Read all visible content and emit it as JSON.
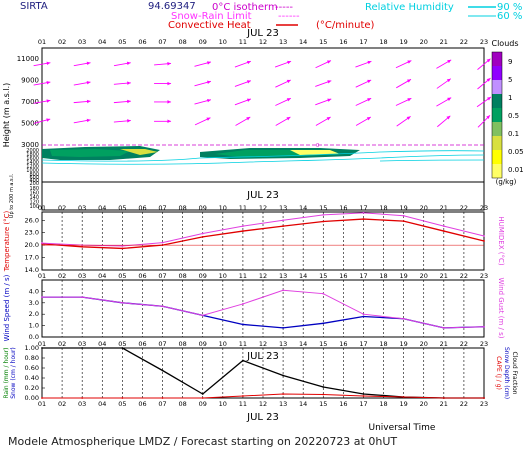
{
  "header": {
    "station": "SIRTA",
    "coords": "94.69347",
    "legend_left": [
      {
        "label": "0°C isotherm",
        "style": "-----"
      },
      {
        "label": "Snow-Rain Limit",
        "style": "------"
      },
      {
        "label": "Convective Heat",
        "unit": "(°C/minute)"
      }
    ],
    "legend_right": [
      {
        "label": "Relative Humidity",
        "levels": [
          "90 %",
          "60 %"
        ]
      }
    ],
    "colors": {
      "isotherm": "#cc00cc",
      "convective": "#e00000",
      "humidity": "#00d0e0",
      "wind_arrow": "#ff00ff"
    }
  },
  "date_label": "JUL 23",
  "hours": [
    "01",
    "02",
    "03",
    "04",
    "05",
    "06",
    "07",
    "08",
    "09",
    "10",
    "11",
    "12",
    "13",
    "14",
    "15",
    "16",
    "17",
    "18",
    "19",
    "20",
    "21",
    "22",
    "23"
  ],
  "footer": {
    "time_axis_title": "Universal Time",
    "caption": "Modele Atmospherique LMDZ / Forecast starting on 20220723 at 0hUT"
  },
  "chart_data": [
    {
      "type": "heatmap",
      "name": "clouds",
      "ylabel": "Height (m a.s.l.)",
      "yticks_upper": [
        11000,
        9000,
        7000,
        5000,
        3000
      ],
      "yticks_lower": [
        2000,
        1800,
        1600,
        1400,
        1200,
        1000,
        800,
        600,
        400,
        200,
        180,
        160,
        140,
        120,
        100
      ],
      "ylabel_lower": "Up to 200 m a.s.l.",
      "colorbar": {
        "title": "Clouds",
        "unit": "(g/kg)",
        "levels": [
          "9",
          "5",
          "1",
          "0.5",
          "0.1",
          "0.05",
          "0.01"
        ],
        "colors": [
          "#ffff66",
          "#ffff00",
          "#d8e040",
          "#80c060",
          "#00a060",
          "#008060",
          "#c090ff",
          "#9000ff",
          "#a000c0"
        ]
      },
      "wind_arrows": {
        "rows_m": [
          10500,
          8700,
          7000,
          5200
        ],
        "columns": [
          "01",
          "03",
          "05",
          "07",
          "09",
          "11",
          "13",
          "15",
          "17",
          "19",
          "21",
          "23"
        ],
        "direction_deg": [
          [
            10,
            10,
            10,
            5,
            15,
            20,
            20,
            25,
            20,
            25,
            30,
            40
          ],
          [
            10,
            10,
            5,
            0,
            15,
            20,
            25,
            20,
            25,
            30,
            35,
            40
          ],
          [
            10,
            5,
            5,
            0,
            15,
            20,
            25,
            20,
            25,
            25,
            30,
            35
          ],
          [
            15,
            10,
            5,
            0,
            25,
            30,
            30,
            30,
            30,
            35,
            40,
            45
          ]
        ]
      },
      "isotherm_m": 3400
    },
    {
      "type": "line",
      "name": "temperature",
      "ylabel": "Temperature (°C)",
      "ylabel_right": "HUMIDEX (°C)",
      "ylim": [
        14,
        28
      ],
      "yticks": [
        14.0,
        17.0,
        20.0,
        23.0,
        26.0
      ],
      "x": [
        1,
        3,
        5,
        7,
        9,
        11,
        13,
        15,
        17,
        19,
        21,
        23
      ],
      "series": [
        {
          "values": [
            20.3,
            19.6,
            19.2,
            20.0,
            22.0,
            23.4,
            24.6,
            25.7,
            26.3,
            25.8,
            23.4,
            21.0
          ],
          "color": "#e00000"
        },
        {
          "values": [
            20.5,
            20.0,
            19.8,
            20.6,
            22.8,
            24.6,
            26.0,
            27.3,
            27.8,
            27.1,
            24.6,
            22.2
          ],
          "color": "#e040e0"
        }
      ]
    },
    {
      "type": "line",
      "name": "wind",
      "ylabel": "Wind Speed (m / s)",
      "ylabel_right": "Wind Gust (m / s)",
      "ylim": [
        0,
        5
      ],
      "yticks": [
        0.0,
        1.0,
        2.0,
        3.0,
        4.0
      ],
      "x": [
        1,
        3,
        5,
        7,
        9,
        11,
        13,
        15,
        17,
        19,
        21,
        23
      ],
      "series": [
        {
          "values": [
            3.5,
            3.5,
            3.0,
            2.7,
            1.9,
            1.1,
            0.8,
            1.2,
            1.8,
            1.6,
            0.8,
            0.9
          ],
          "color": "#0000c0"
        },
        {
          "values": [
            3.5,
            3.5,
            3.0,
            2.7,
            1.9,
            2.9,
            4.1,
            3.8,
            2.0,
            1.6,
            0.8,
            0.9
          ],
          "color": "#e040e0"
        }
      ]
    },
    {
      "type": "line",
      "name": "precipitation",
      "ylabel_left": [
        "Rain (mm / hour)",
        "Snow (cm / hour)"
      ],
      "ylabel_right": [
        "CAPE (J / g)",
        "Snow Depth (cm)",
        "Cloud Fraction"
      ],
      "ylim": [
        0,
        1
      ],
      "yticks": [
        0.0,
        0.2,
        0.4,
        0.6,
        0.8,
        1.0
      ],
      "x": [
        1,
        3,
        5,
        7,
        9,
        11,
        13,
        15,
        17,
        19,
        21,
        23
      ],
      "series": [
        {
          "values": [
            1.0,
            1.0,
            1.0,
            0.55,
            0.08,
            0.75,
            0.45,
            0.22,
            0.08,
            0.02,
            0.0,
            0.0
          ],
          "color": "#000000"
        },
        {
          "values": [
            0.0,
            0.0,
            0.0,
            0.0,
            0.0,
            0.04,
            0.08,
            0.07,
            0.04,
            0.02,
            0.0,
            0.0
          ],
          "color": "#e00000"
        }
      ]
    }
  ]
}
